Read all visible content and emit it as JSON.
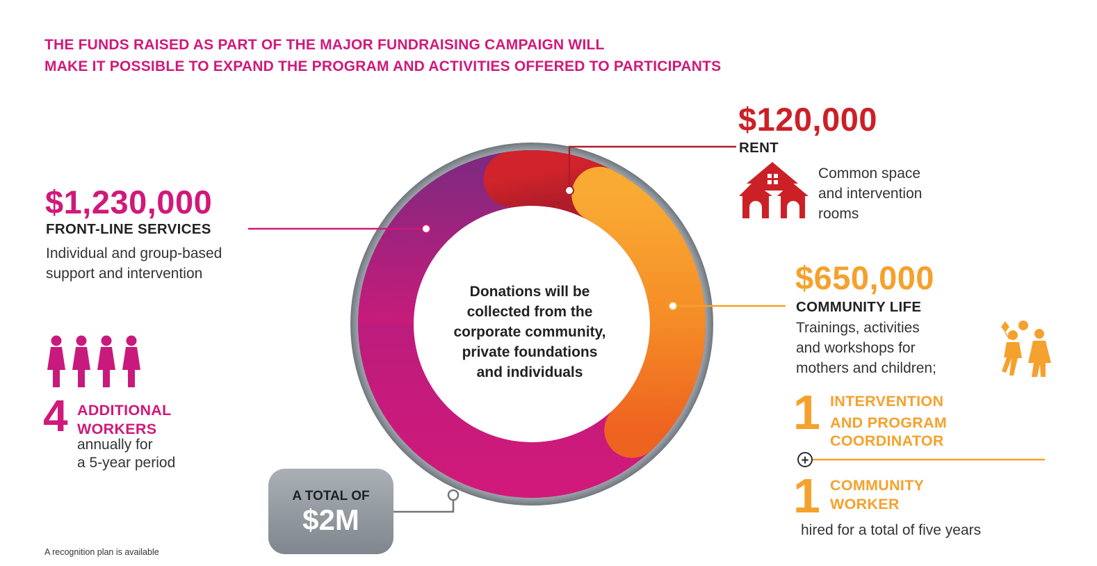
{
  "headline": {
    "line1": "THE FUNDS RAISED AS PART OF THE MAJOR FUNDRAISING CAMPAIGN WILL",
    "line2": "MAKE IT POSSIBLE TO EXPAND THE PROGRAM AND ACTIVITIES OFFERED TO PARTICIPANTS"
  },
  "colors": {
    "magenta": "#d0197a",
    "red": "#cc2027",
    "orange": "#f5a12d",
    "purple": "#8e2a80",
    "gray": "#8d949b"
  },
  "center_text": {
    "line1": "Donations will be",
    "line2": "collected from the",
    "line3": "corporate community,",
    "line4": "private foundations",
    "line5": "and individuals"
  },
  "frontline": {
    "amount": "$1,230,000",
    "category": "FRONT-LINE SERVICES",
    "desc_line1": "Individual and group-based",
    "desc_line2": "support and intervention",
    "icon": "four-women-icon",
    "workers_number": "4",
    "workers_label_line1": "ADDITIONAL",
    "workers_label_line2": "WORKERS",
    "workers_desc_line1": "annually for",
    "workers_desc_line2": "a 5-year period"
  },
  "rent": {
    "amount": "$120,000",
    "category": "RENT",
    "icon": "houses-icon",
    "desc_line1": "Common space",
    "desc_line2": "and intervention",
    "desc_line3": "rooms"
  },
  "community": {
    "amount": "$650,000",
    "category": "COMMUNITY LIFE",
    "desc_line1": "Trainings, activities",
    "desc_line2": "and workshops for",
    "desc_line3": "mothers and children;",
    "icon": "children-playing-icon",
    "hire1_number": "1",
    "hire1_line1": "INTERVENTION",
    "hire1_line2": "AND PROGRAM",
    "hire1_line3": "COORDINATOR",
    "plus": "+",
    "hire2_number": "1",
    "hire2_line1": "COMMUNITY",
    "hire2_line2": "WORKER",
    "hire_footer": "hired for a total of five years"
  },
  "total": {
    "label": "A TOTAL OF",
    "value": "$2M"
  },
  "footnote": "A recognition plan is available",
  "chart_data": {
    "type": "pie",
    "categories": [
      "FRONT-LINE SERVICES",
      "RENT",
      "COMMUNITY LIFE"
    ],
    "values": [
      1230000,
      120000,
      650000
    ],
    "total": 2000000,
    "colors": [
      "#d0197a",
      "#cc2027",
      "#f5a12d"
    ]
  }
}
